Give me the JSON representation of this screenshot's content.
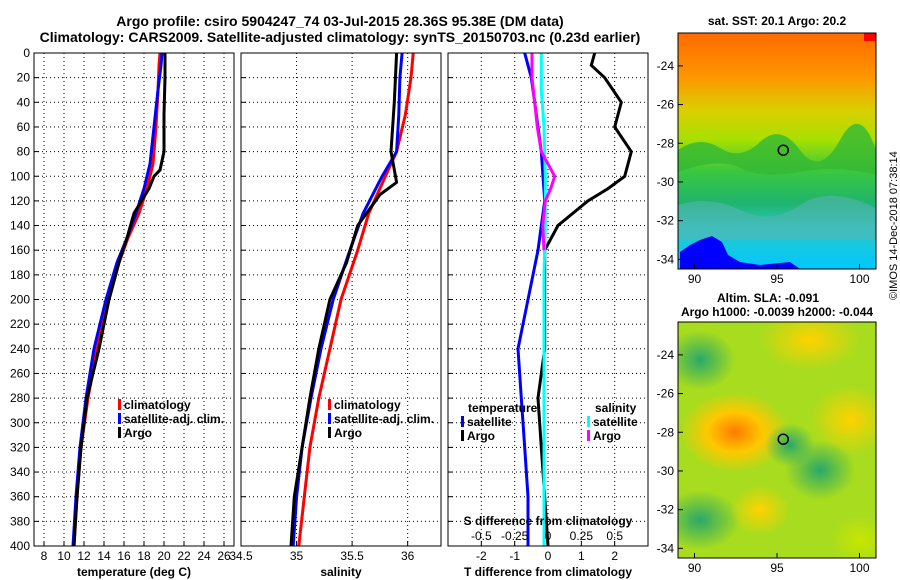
{
  "titles": {
    "line1": "Argo profile: csiro 5904247_74 03-Jul-2015 28.36S 95.38E (DM data)",
    "line2": "Climatology: CARS2009. Satellite-adjusted climatology: synTS_20150703.nc (0.23d earlier)"
  },
  "right_panels": {
    "sst_title": "sat. SST: 20.1 Argo: 20.2",
    "sla_title1": "Altim. SLA: -0.091",
    "sla_title2": "Argo h1000: -0.0039 h2000: -0.044",
    "stamp": "©IMOS 14-Dec-2018 07:38:14"
  },
  "colors": {
    "climatology": "#ff0000",
    "satellite": "#0000ff",
    "argo": "#000000",
    "sal_satellite": "#00ffff",
    "sal_argo": "#ff00ff"
  },
  "chart_data": [
    {
      "type": "line",
      "xlabel": "temperature (deg C)",
      "ylabel": "",
      "xlim": [
        7,
        27
      ],
      "ylim": [
        400,
        0
      ],
      "xticks": [
        8,
        10,
        12,
        14,
        16,
        18,
        20,
        22,
        24,
        26
      ],
      "yticks": [
        0,
        20,
        40,
        60,
        80,
        100,
        120,
        140,
        160,
        180,
        200,
        220,
        240,
        260,
        280,
        300,
        320,
        340,
        360,
        380,
        400
      ],
      "grid": true,
      "legend": [
        "climatology",
        "satellite-adj. clim.",
        "Argo"
      ],
      "series": [
        {
          "name": "climatology",
          "color": "#ff0000",
          "depth": [
            0,
            10,
            30,
            60,
            90,
            110,
            130,
            150,
            170,
            200,
            240,
            280,
            320,
            360,
            400
          ],
          "values": [
            19.6,
            19.5,
            19.4,
            19.2,
            18.9,
            18.3,
            17.5,
            16.4,
            15.5,
            14.5,
            13.3,
            12.4,
            11.7,
            11.3,
            11.0
          ]
        },
        {
          "name": "satellite-adj. clim.",
          "color": "#0000ff",
          "depth": [
            0,
            10,
            30,
            60,
            90,
            110,
            130,
            150,
            170,
            200,
            240,
            280,
            320,
            360,
            400
          ],
          "values": [
            19.8,
            19.7,
            19.4,
            19.0,
            18.6,
            18.0,
            17.2,
            16.3,
            15.3,
            14.2,
            13.0,
            12.2,
            11.6,
            11.2,
            10.9
          ]
        },
        {
          "name": "Argo",
          "color": "#000000",
          "depth": [
            0,
            20,
            50,
            80,
            95,
            100,
            110,
            130,
            150,
            170,
            200,
            240,
            280,
            320,
            360,
            400
          ],
          "values": [
            20.1,
            20.1,
            20.0,
            20.0,
            19.6,
            19.0,
            18.5,
            17.0,
            16.3,
            15.5,
            14.5,
            13.5,
            12.3,
            11.7,
            11.3,
            11.0
          ]
        }
      ]
    },
    {
      "type": "line",
      "xlabel": "salinity",
      "xlim": [
        34.5,
        36.3
      ],
      "ylim": [
        400,
        0
      ],
      "xticks": [
        34.5,
        35,
        35.5,
        36
      ],
      "xticklabels": [
        "34.5",
        "35",
        "35.5",
        "36"
      ],
      "grid": true,
      "legend": [
        "climatology",
        "satellite-adj. clim.",
        "Argo"
      ],
      "series": [
        {
          "name": "climatology",
          "color": "#ff0000",
          "depth": [
            0,
            20,
            50,
            80,
            100,
            130,
            160,
            200,
            240,
            280,
            320,
            360,
            400
          ],
          "values": [
            36.05,
            36.03,
            35.98,
            35.9,
            35.8,
            35.65,
            35.55,
            35.4,
            35.3,
            35.2,
            35.12,
            35.07,
            35.02
          ]
        },
        {
          "name": "satellite-adj. clim.",
          "color": "#0000ff",
          "depth": [
            0,
            20,
            50,
            80,
            100,
            130,
            160,
            200,
            240,
            280,
            320,
            360,
            400
          ],
          "values": [
            35.95,
            35.93,
            35.92,
            35.9,
            35.77,
            35.6,
            35.48,
            35.33,
            35.22,
            35.13,
            35.05,
            35.0,
            34.97
          ]
        },
        {
          "name": "Argo",
          "color": "#000000",
          "depth": [
            0,
            40,
            80,
            105,
            115,
            140,
            170,
            200,
            240,
            280,
            320,
            360,
            400
          ],
          "values": [
            35.9,
            35.88,
            35.85,
            35.9,
            35.75,
            35.55,
            35.45,
            35.3,
            35.2,
            35.12,
            35.05,
            34.98,
            34.95
          ]
        }
      ]
    },
    {
      "type": "line",
      "xlabel": "T difference from climatology",
      "xlabel_top": "S difference from climatology",
      "xlim": [
        -3,
        3
      ],
      "ylim": [
        400,
        0
      ],
      "xticks": [
        -2,
        -1,
        0,
        1,
        2
      ],
      "xticks_top": [
        -0.5,
        -0.25,
        0,
        0.25,
        0.5
      ],
      "xticklabels_top": [
        "-0.5",
        "-0.25",
        "0",
        "0.25",
        "0.5"
      ],
      "grid": true,
      "legend_temperature": {
        "heading": "temperature",
        "entries": [
          "satellite",
          "Argo"
        ]
      },
      "legend_salinity": {
        "heading": "salinity",
        "entries": [
          "satellite",
          "Argo"
        ]
      },
      "series": [
        {
          "name": "temperature satellite",
          "color": "#0000ff",
          "depth": [
            0,
            20,
            40,
            80,
            120,
            160,
            200,
            240,
            280,
            320,
            360,
            400
          ],
          "values": [
            -0.7,
            -0.5,
            -0.4,
            -0.2,
            -0.1,
            -0.3,
            -0.6,
            -0.9,
            -0.8,
            -0.7,
            -0.6,
            -0.6
          ]
        },
        {
          "name": "temperature Argo",
          "color": "#000000",
          "depth": [
            0,
            10,
            20,
            40,
            60,
            80,
            100,
            110,
            120,
            140,
            160,
            200,
            240,
            280,
            320,
            360,
            400
          ],
          "values": [
            1.4,
            1.3,
            1.7,
            2.2,
            2.0,
            2.5,
            2.3,
            1.8,
            1.2,
            0.3,
            -0.1,
            -0.1,
            -0.1,
            -0.3,
            -0.2,
            -0.1,
            0.0
          ]
        },
        {
          "name": "salinity satellite",
          "color": "#00ffff",
          "depth": [
            0,
            30,
            60,
            100,
            140,
            180,
            240,
            300,
            400
          ],
          "values": [
            -0.05,
            -0.05,
            -0.03,
            -0.02,
            -0.02,
            -0.03,
            -0.03,
            -0.03,
            -0.03
          ]
        },
        {
          "name": "salinity Argo",
          "color": "#ff00ff",
          "depth": [
            0,
            20,
            40,
            60,
            80,
            100,
            110,
            120,
            140,
            160
          ],
          "values": [
            -0.12,
            -0.12,
            -0.1,
            -0.08,
            -0.05,
            0.05,
            0.02,
            -0.02,
            -0.04,
            -0.03
          ]
        }
      ]
    },
    {
      "type": "heatmap",
      "title": "sat. SST: 20.1 Argo: 20.2",
      "xlim": [
        89,
        101
      ],
      "ylim": [
        -34.5,
        -22.3
      ],
      "xticks": [
        90,
        95,
        100
      ],
      "yticks": [
        -24,
        -26,
        -28,
        -30,
        -32,
        -34
      ],
      "marker": {
        "lon": 95.38,
        "lat": -28.36
      }
    },
    {
      "type": "heatmap",
      "title": "Altim. SLA: -0.091",
      "subtitle": "Argo h1000: -0.0039 h2000: -0.044",
      "xlim": [
        89,
        101
      ],
      "ylim": [
        -34.5,
        -22.3
      ],
      "xticks": [
        90,
        95,
        100
      ],
      "yticks": [
        -24,
        -26,
        -28,
        -30,
        -32,
        -34
      ],
      "marker": {
        "lon": 95.38,
        "lat": -28.36
      }
    }
  ]
}
